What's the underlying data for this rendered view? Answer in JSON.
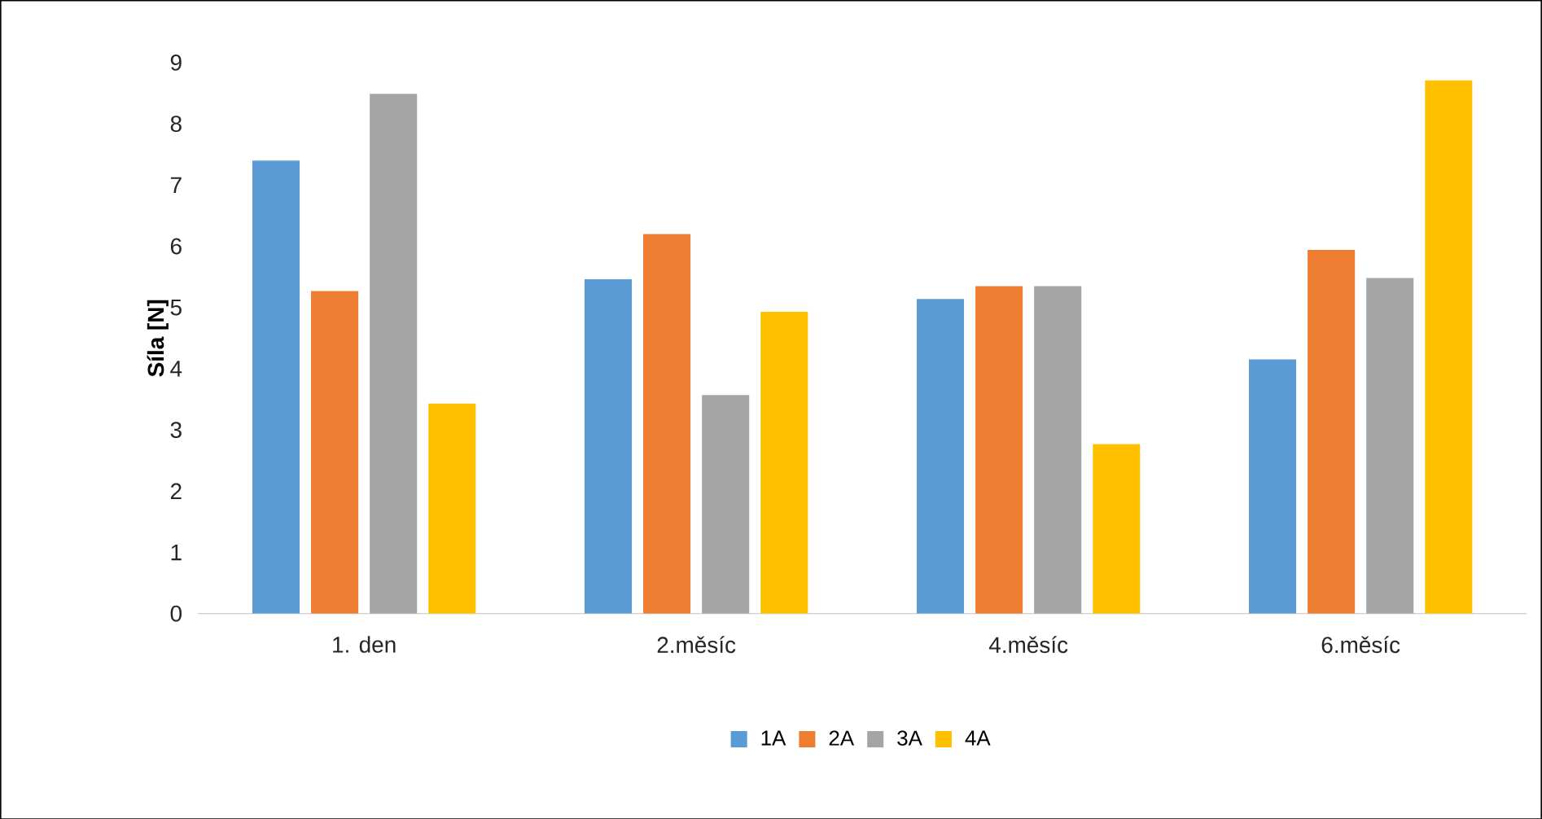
{
  "chart_data": {
    "type": "bar",
    "ylabel": "Síla [N]",
    "categories": [
      "1. den",
      "2.měsíc",
      "4.měsíc",
      "6.měsíc"
    ],
    "series": [
      {
        "name": "1A",
        "color": "#5b9bd5",
        "values": [
          7.4,
          5.46,
          5.14,
          4.15
        ]
      },
      {
        "name": "2A",
        "color": "#ed7d31",
        "values": [
          5.27,
          6.2,
          5.35,
          5.94
        ]
      },
      {
        "name": "3A",
        "color": "#a5a5a5",
        "values": [
          8.49,
          3.57,
          5.35,
          5.48
        ]
      },
      {
        "name": "4A",
        "color": "#ffc000",
        "values": [
          3.43,
          4.93,
          2.77,
          8.71
        ]
      }
    ],
    "ylim": [
      0,
      9
    ],
    "yticks": [
      0,
      1,
      2,
      3,
      4,
      5,
      6,
      7,
      8,
      9
    ],
    "grid": false,
    "legend": "bottom"
  }
}
